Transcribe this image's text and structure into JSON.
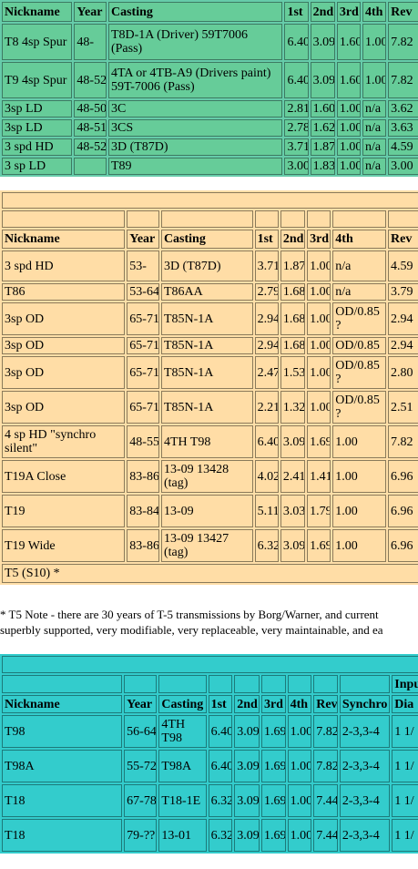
{
  "table1": {
    "headers": [
      "Nickname",
      "Year",
      "Casting",
      "1st",
      "2nd",
      "3rd",
      "4th",
      "Rev"
    ],
    "rows": [
      [
        "T8 4sp Spur",
        "48-",
        "T8D-1A (Driver) 59T7006 (Pass)",
        "6.40",
        "3.09",
        "1.60",
        "1.00",
        "7.82"
      ],
      [
        "T9 4sp Spur",
        "48-52",
        "4TA or 4TB-A9 (Drivers paint) 59T-7006 (Pass)",
        "6.40",
        "3.09",
        "1.60",
        "1.00",
        "7.82"
      ],
      [
        "3sp LD",
        "48-50",
        "3C",
        "2.81",
        "1.60",
        "1.00",
        "n/a",
        "3.62"
      ],
      [
        "3sp LD",
        "48-51",
        "3CS",
        "2.78",
        "1.62",
        "1.00",
        "n/a",
        "3.63"
      ],
      [
        "3 spd HD",
        "48-52",
        "3D (T87D)",
        "3.71",
        "1.87",
        "1.00",
        "n/a",
        "4.59"
      ],
      [
        "3 sp LD",
        "",
        "T89",
        "3.00",
        "1.83",
        "1.00",
        "n/a",
        "3.00"
      ]
    ]
  },
  "table2": {
    "headers": [
      "Nickname",
      "Year",
      "Casting",
      "1st",
      "2nd",
      "3rd",
      "4th",
      "Rev"
    ],
    "rows": [
      [
        "3 spd HD",
        "53-",
        "3D (T87D)",
        "3.71",
        "1.87",
        "1.00",
        "n/a",
        "4.59"
      ],
      [
        "T86",
        "53-64",
        "T86AA",
        "2.79",
        "1.68",
        "1.00",
        "n/a",
        "3.79"
      ],
      [
        "3sp OD",
        "65-71",
        "T85N-1A",
        "2.94",
        "1.68",
        "1.00",
        "OD/0.85 ?",
        "2.94"
      ],
      [
        "3sp OD",
        "65-71",
        "T85N-1A",
        "2.94",
        "1.68",
        "1.00",
        "OD/0.85",
        "2.94"
      ],
      [
        "3sp OD",
        "65-71",
        "T85N-1A",
        "2.47",
        "1.53",
        "1.00",
        "OD/0.85 ?",
        "2.80"
      ],
      [
        "3sp OD",
        "65-71",
        "T85N-1A",
        "2.21",
        "1.32",
        "1.00",
        "OD/0.85 ?",
        "2.51"
      ],
      [
        "4 sp HD \"synchro silent\"",
        "48-55",
        "4TH T98",
        "6.40",
        "3.09",
        "1.69",
        "1.00",
        "7.82"
      ],
      [
        "T19A Close",
        "83-86",
        "13-09 13428 (tag)",
        "4.02",
        "2.41",
        "1.41",
        "1.00",
        "6.96"
      ],
      [
        "T19",
        "83-84",
        "13-09",
        "5.11",
        "3.03",
        "1.79",
        "1.00",
        "6.96"
      ],
      [
        "T19 Wide",
        "83-86",
        "13-09 13427 (tag)",
        "6.32",
        "3.09",
        "1.69",
        "1.00",
        "6.96"
      ]
    ],
    "last_row": "T5 (S10) *"
  },
  "note": {
    "line1": "* T5 Note - there are 30 years of T-5 transmissions by Borg/Warner, and current",
    "line2": "superbly supported, very modifiable, very replaceable, very maintainable, and ea"
  },
  "table3": {
    "top_header": "Inpu",
    "headers": [
      "Nickname",
      "Year",
      "Casting",
      "1st",
      "2nd",
      "3rd",
      "4th",
      "Rev",
      "Synchro",
      "Dia"
    ],
    "rows": [
      [
        "T98",
        "56-64",
        "4TH T98",
        "6.40",
        "3.09",
        "1.69",
        "1.00",
        "7.82",
        "2-3,3-4",
        "1 1/"
      ],
      [
        "T98A",
        "55-72",
        "T98A",
        "6.40",
        "3.09",
        "1.69",
        "1.00",
        "7.82",
        "2-3,3-4",
        "1 1/"
      ],
      [
        "T18",
        "67-78",
        "T18-1E",
        "6.32",
        "3.09",
        "1.69",
        "1.00",
        "7.44",
        "2-3,3-4",
        "1 1/"
      ],
      [
        "T18",
        "79-??",
        "13-01",
        "6.32",
        "3.09",
        "1.69",
        "1.00",
        "7.44",
        "2-3,3-4",
        "1 1/"
      ]
    ]
  }
}
